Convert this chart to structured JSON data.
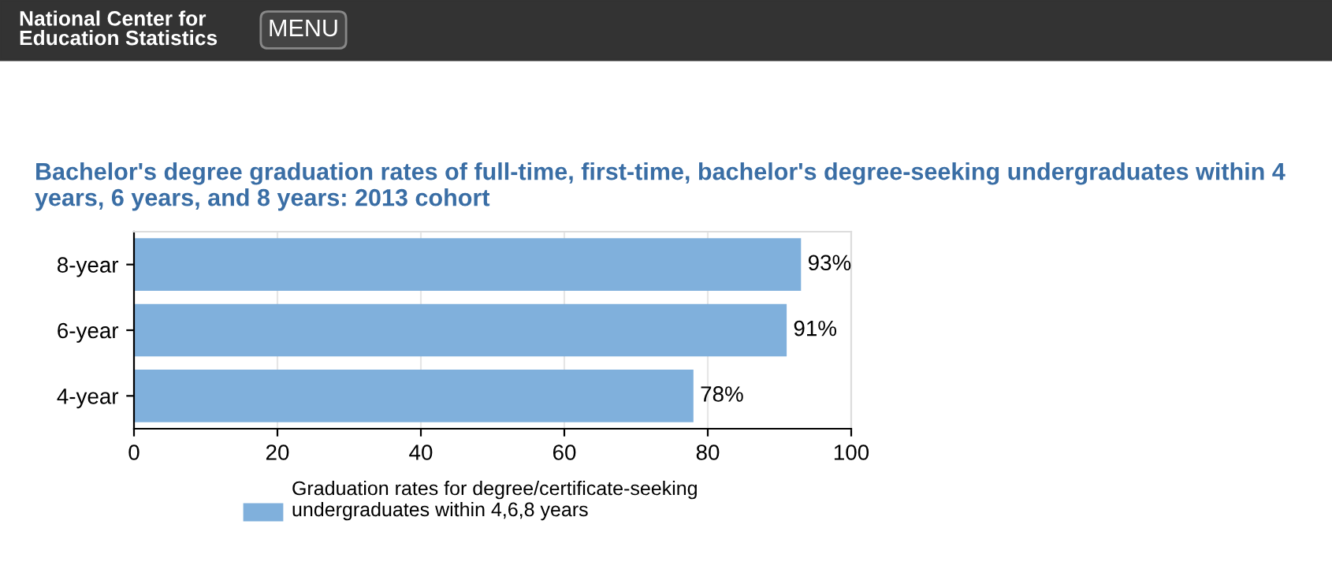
{
  "chart_data": {
    "type": "bar",
    "orientation": "horizontal",
    "title": "Bachelor's degree graduation rates of full-time, first-time, bachelor's degree-seeking undergraduates within 4 years, 6 years, and 8 years: 2013 cohort",
    "annotations": [
      "National Center for\nEducation Statistics",
      "MENU"
    ],
    "categories": [
      "8-year",
      "6-year",
      "4-year"
    ],
    "series": [
      {
        "name": "Graduation rates for degree/certificate-seeking undergraduates within 4,6,8 years",
        "color": "#80b0dc",
        "values": [
          93,
          91,
          78
        ],
        "value_labels": [
          "93%",
          "91%",
          "78%"
        ]
      }
    ],
    "xlim": [
      0,
      100
    ],
    "xticks": [
      0,
      20,
      40,
      60,
      80,
      100
    ],
    "grid": "x",
    "legend": "bottom"
  }
}
